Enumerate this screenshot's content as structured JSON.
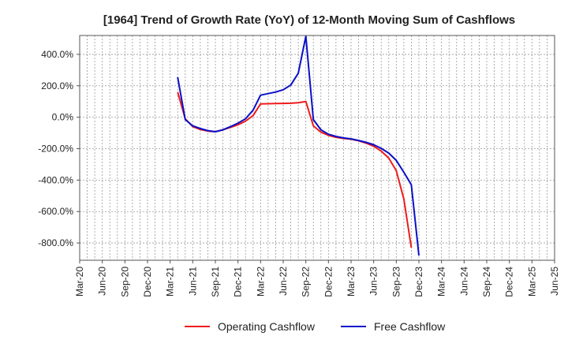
{
  "chart_data": {
    "type": "line",
    "title": "[1964]  Trend of Growth Rate (YoY) of 12-Month Moving Sum of Cashflows",
    "xlabel": "",
    "ylabel": "",
    "x_tick_labels": [
      "Mar-20",
      "Jun-20",
      "Sep-20",
      "Dec-20",
      "Mar-21",
      "Jun-21",
      "Sep-21",
      "Dec-21",
      "Mar-22",
      "Jun-22",
      "Sep-22",
      "Dec-22",
      "Mar-23",
      "Jun-23",
      "Sep-23",
      "Dec-23",
      "Mar-24",
      "Jun-24",
      "Sep-24",
      "Dec-24",
      "Mar-25",
      "Jun-25"
    ],
    "y_ticks": [
      -800,
      -600,
      -400,
      -200,
      0,
      200,
      400
    ],
    "y_tick_labels": [
      "-800.0%",
      "-600.0%",
      "-400.0%",
      "-200.0%",
      "0.0%",
      "200.0%",
      "400.0%"
    ],
    "ylim": [
      -910,
      520
    ],
    "x_range": [
      "2020-03",
      "2025-06"
    ],
    "grid": true,
    "legend_position": "bottom",
    "series": [
      {
        "name": "Operating Cashflow",
        "color": "#ee1c1c",
        "points": [
          [
            "2021-04",
            160
          ],
          [
            "2021-05",
            -10
          ],
          [
            "2021-06",
            -60
          ],
          [
            "2021-07",
            -78
          ],
          [
            "2021-08",
            -88
          ],
          [
            "2021-09",
            -92
          ],
          [
            "2021-10",
            -80
          ],
          [
            "2021-11",
            -65
          ],
          [
            "2021-12",
            -48
          ],
          [
            "2022-01",
            -25
          ],
          [
            "2022-02",
            10
          ],
          [
            "2022-03",
            85
          ],
          [
            "2022-04",
            86
          ],
          [
            "2022-05",
            87
          ],
          [
            "2022-06",
            88
          ],
          [
            "2022-07",
            89
          ],
          [
            "2022-08",
            92
          ],
          [
            "2022-09",
            100
          ],
          [
            "2022-10",
            -55
          ],
          [
            "2022-11",
            -95
          ],
          [
            "2022-12",
            -115
          ],
          [
            "2023-01",
            -128
          ],
          [
            "2023-02",
            -135
          ],
          [
            "2023-03",
            -140
          ],
          [
            "2023-04",
            -150
          ],
          [
            "2023-05",
            -165
          ],
          [
            "2023-06",
            -185
          ],
          [
            "2023-07",
            -215
          ],
          [
            "2023-08",
            -260
          ],
          [
            "2023-09",
            -340
          ],
          [
            "2023-10",
            -520
          ],
          [
            "2023-11",
            -830
          ]
        ]
      },
      {
        "name": "Free Cashflow",
        "color": "#0a10c8",
        "points": [
          [
            "2021-04",
            255
          ],
          [
            "2021-05",
            -15
          ],
          [
            "2021-06",
            -55
          ],
          [
            "2021-07",
            -72
          ],
          [
            "2021-08",
            -85
          ],
          [
            "2021-09",
            -92
          ],
          [
            "2021-10",
            -80
          ],
          [
            "2021-11",
            -60
          ],
          [
            "2021-12",
            -38
          ],
          [
            "2022-01",
            -10
          ],
          [
            "2022-02",
            45
          ],
          [
            "2022-03",
            140
          ],
          [
            "2022-04",
            150
          ],
          [
            "2022-05",
            160
          ],
          [
            "2022-06",
            175
          ],
          [
            "2022-07",
            205
          ],
          [
            "2022-08",
            280
          ],
          [
            "2022-09",
            515
          ],
          [
            "2022-10",
            -15
          ],
          [
            "2022-11",
            -80
          ],
          [
            "2022-12",
            -108
          ],
          [
            "2023-01",
            -122
          ],
          [
            "2023-02",
            -132
          ],
          [
            "2023-03",
            -138
          ],
          [
            "2023-04",
            -148
          ],
          [
            "2023-05",
            -160
          ],
          [
            "2023-06",
            -175
          ],
          [
            "2023-07",
            -198
          ],
          [
            "2023-08",
            -228
          ],
          [
            "2023-09",
            -275
          ],
          [
            "2023-10",
            -350
          ],
          [
            "2023-11",
            -430
          ],
          [
            "2023-12",
            -880
          ]
        ]
      }
    ]
  }
}
